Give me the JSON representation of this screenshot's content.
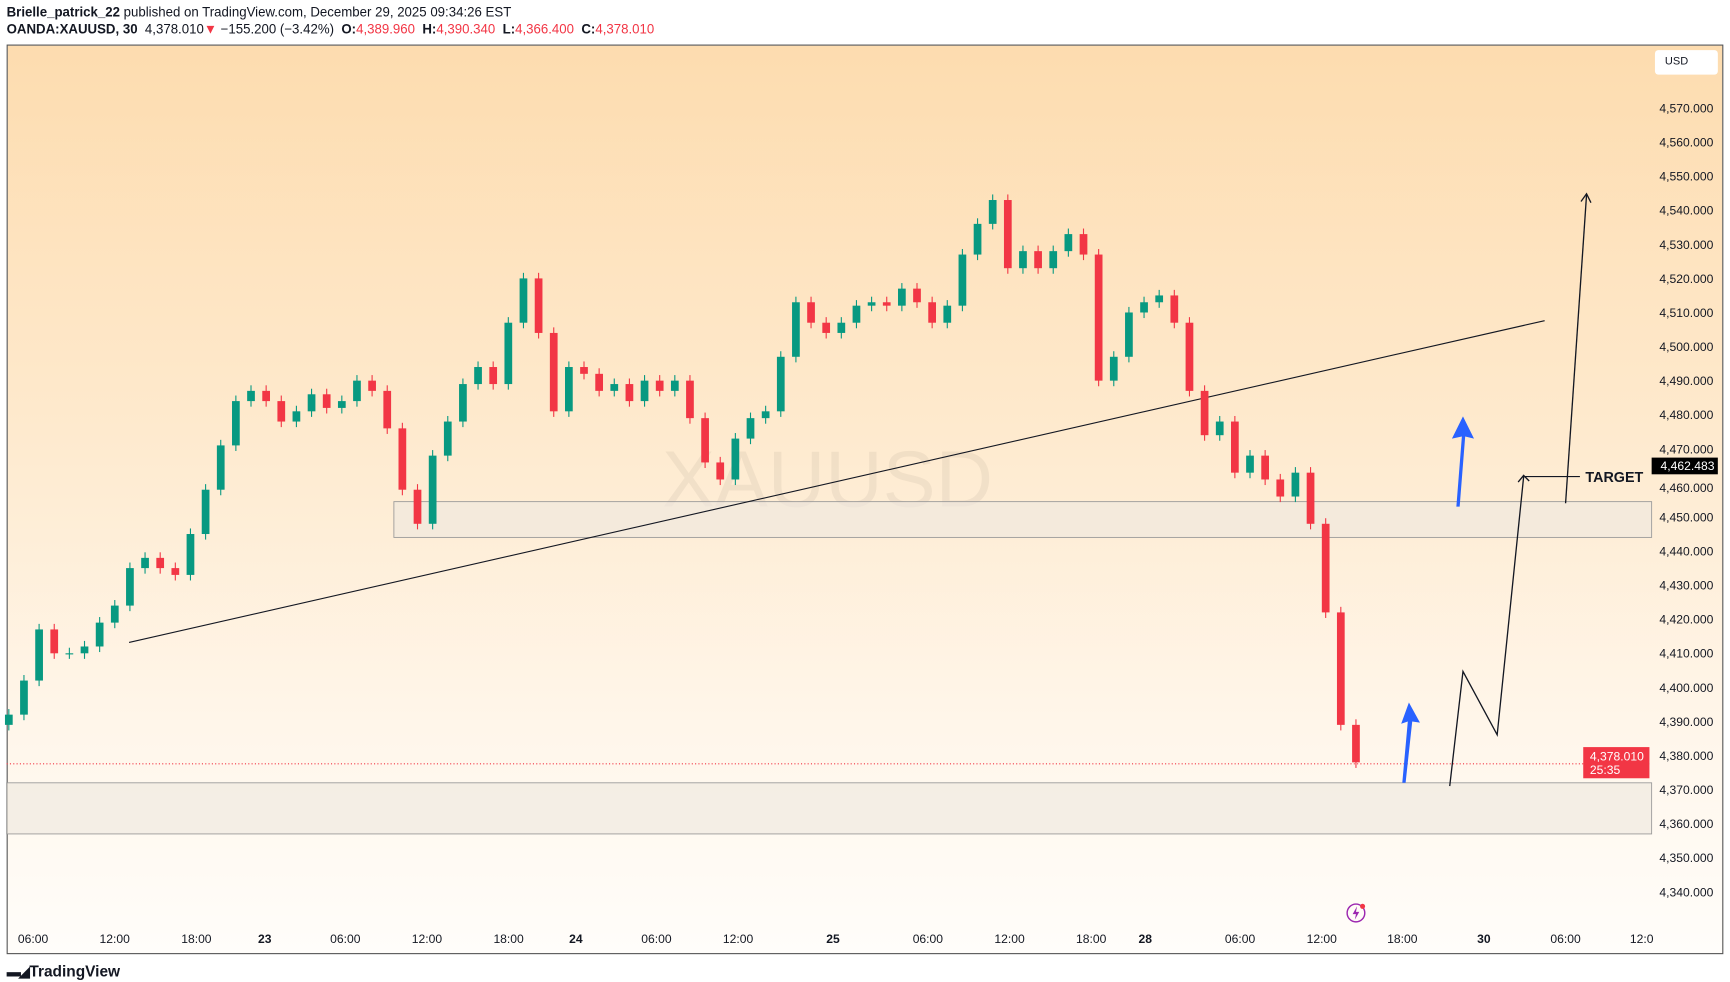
{
  "header": {
    "publisher": "Brielle_patrick_22",
    "published_text": "published on TradingView.com, December 29, 2025 09:34:26 EST",
    "symbol": "OANDA:XAUUSD, 30",
    "last": "4,378.010",
    "change": "−155.200 (−3.42%)",
    "o_label": "O:",
    "o": "4,389.960",
    "h_label": "H:",
    "h": "4,390.340",
    "l_label": "L:",
    "l": "4,366.400",
    "c_label": "C:",
    "c": "4,378.010"
  },
  "currency_button": "USD",
  "watermark": "XAUUSD",
  "footer": {
    "brand": "TradingView"
  },
  "colors": {
    "up": "#089981",
    "down": "#f23645",
    "arrow": "#2962ff",
    "target_label_bg": "#000000",
    "last_price_bg": "#f23645"
  },
  "annotations": {
    "target_text": "TARGET",
    "target_price": "4,462.483",
    "last_price": "4,378.010",
    "countdown": "25:35"
  },
  "chart_data": {
    "type": "candlestick",
    "title": "",
    "interval": "30",
    "ylim": [
      4333,
      4585
    ],
    "y_ticks": [
      "4,340.000",
      "4,350.000",
      "4,360.000",
      "4,370.000",
      "4,380.000",
      "4,390.000",
      "4,400.000",
      "4,410.000",
      "4,420.000",
      "4,430.000",
      "4,440.000",
      "4,450.000",
      "4,460.000",
      "4,470.000",
      "4,480.000",
      "4,490.000",
      "4,500.000",
      "4,510.000",
      "4,520.000",
      "4,530.000",
      "4,540.000",
      "4,550.000",
      "4,560.000",
      "4,570.000"
    ],
    "x_ticks": [
      "06:00",
      "12:00",
      "18:00",
      "23",
      "06:00",
      "12:00",
      "18:00",
      "24",
      "06:00",
      "12:00",
      "25",
      "06:00",
      "12:00",
      "18:00",
      "28",
      "06:00",
      "12:00",
      "18:00",
      "30",
      "06:00",
      "12:0"
    ],
    "closes_approx": [
      4392,
      4402,
      4417,
      4410,
      4410,
      4412,
      4419,
      4424,
      4435,
      4438,
      4435,
      4433,
      4445,
      4458,
      4471,
      4484,
      4487,
      4484,
      4478,
      4481,
      4486,
      4482,
      4484,
      4490,
      4487,
      4476,
      4458,
      4448,
      4468,
      4478,
      4489,
      4494,
      4489,
      4507,
      4520,
      4504,
      4481,
      4494,
      4492,
      4487,
      4489,
      4484,
      4490,
      4487,
      4490,
      4479,
      4466,
      4461,
      4473,
      4479,
      4481,
      4497,
      4513,
      4507,
      4504,
      4507,
      4512,
      4513,
      4512,
      4517,
      4513,
      4507,
      4512,
      4527,
      4536,
      4543,
      4523,
      4528,
      4523,
      4528,
      4533,
      4527,
      4490,
      4497,
      4510,
      4513,
      4515,
      4507,
      4487,
      4474,
      4478,
      4463,
      4468,
      4461,
      4456,
      4463,
      4448,
      4422,
      4389,
      4378
    ],
    "zones": [
      [
        4444,
        4454.5
      ],
      [
        4357,
        4372
      ]
    ],
    "horizontal_lines": [
      {
        "label": "TARGET",
        "price": 4462.483
      },
      {
        "label": "last",
        "price": 4378.01
      }
    ]
  }
}
